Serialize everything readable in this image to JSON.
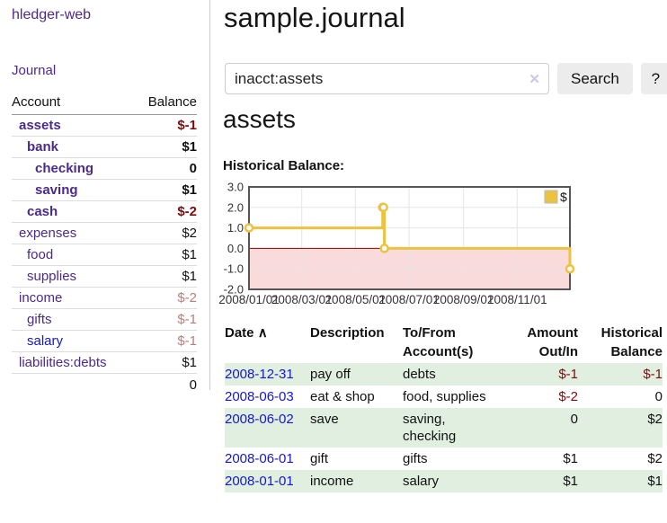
{
  "app": {
    "title": "hledger-web"
  },
  "sidebar": {
    "nav": {
      "journal_label": "Journal"
    },
    "accounts": {
      "headers": {
        "account": "Account",
        "balance": "Balance"
      },
      "rows": [
        {
          "name": "assets",
          "level": 1,
          "bold": true,
          "name_color": "purple",
          "balance": "$-1",
          "balance_color": "negative"
        },
        {
          "name": "bank",
          "level": 2,
          "bold": true,
          "name_color": "purple",
          "balance": "$1",
          "balance_color": "normal"
        },
        {
          "name": "checking",
          "level": 3,
          "bold": true,
          "name_color": "purple",
          "balance": "0",
          "balance_color": "normal"
        },
        {
          "name": "saving",
          "level": 3,
          "bold": true,
          "name_color": "purple",
          "balance": "$1",
          "balance_color": "normal"
        },
        {
          "name": "cash",
          "level": 2,
          "bold": true,
          "name_color": "purple",
          "balance": "$-2",
          "balance_color": "negative"
        },
        {
          "name": "expenses",
          "level": 1,
          "bold": false,
          "name_color": "purple",
          "balance": "$2",
          "balance_color": "normal"
        },
        {
          "name": "food",
          "level": 2,
          "bold": false,
          "name_color": "purple",
          "balance": "$1",
          "balance_color": "normal"
        },
        {
          "name": "supplies",
          "level": 2,
          "bold": false,
          "name_color": "purple",
          "balance": "$1",
          "balance_color": "normal"
        },
        {
          "name": "income",
          "level": 1,
          "bold": false,
          "name_color": "purple",
          "balance": "$-2",
          "balance_color": "negative-muted"
        },
        {
          "name": "gifts",
          "level": 2,
          "bold": false,
          "name_color": "purple",
          "balance": "$-1",
          "balance_color": "negative-muted"
        },
        {
          "name": "salary",
          "level": 2,
          "bold": false,
          "name_color": "blue",
          "balance": "$-1",
          "balance_color": "negative-muted"
        },
        {
          "name": "liabilities:debts",
          "level": 1,
          "bold": false,
          "name_color": "purple",
          "balance": "$1",
          "balance_color": "normal"
        }
      ],
      "total": "0"
    }
  },
  "header": {
    "title": "sample.journal"
  },
  "search": {
    "value": "inacct:assets",
    "clear_icon": "✕",
    "search_label": "Search",
    "help_label": "?"
  },
  "main": {
    "section_title": "assets",
    "chart_label": "Historical Balance:"
  },
  "chart_data": {
    "type": "line",
    "title": "Historical Balance:",
    "series": [
      {
        "name": "$",
        "color": "#edc240",
        "step": true,
        "points": [
          {
            "date": "2008-01-01",
            "value": 1
          },
          {
            "date": "2008-06-01",
            "value": 2
          },
          {
            "date": "2008-06-02",
            "value": 2
          },
          {
            "date": "2008-06-03",
            "value": 0
          },
          {
            "date": "2008-12-31",
            "value": -1
          }
        ]
      }
    ],
    "x_range": [
      "2008-01-01",
      "2008-12-31"
    ],
    "ylim": [
      -2,
      3
    ],
    "y_ticks": [
      3.0,
      2.0,
      1.0,
      0.0,
      -1.0,
      -2.0
    ],
    "x_ticks": [
      "2008/01/01",
      "2008/03/01",
      "2008/05/01",
      "2008/07/01",
      "2008/09/01",
      "2008/11/01"
    ],
    "grid": true,
    "legend": {
      "label": "$",
      "position": "top-right"
    },
    "negative_region_color": "#f9dbdb",
    "zero_line_color": "#8b0000",
    "border_color": "#555555",
    "grid_color": "#e5e5e5"
  },
  "table": {
    "headers": {
      "date": "Date",
      "sort_icon": "∧",
      "description": "Description",
      "accounts": "To/From Account(s)",
      "amount": "Amount Out/In",
      "balance": "Historical Balance"
    },
    "rows": [
      {
        "date": "2008-12-31",
        "description": "pay off",
        "accounts": "debts",
        "amount": "$-1",
        "amount_color": "negative",
        "balance": "$-1",
        "balance_color": "negative",
        "highlight": true
      },
      {
        "date": "2008-06-03",
        "description": "eat & shop",
        "accounts": "food, supplies",
        "amount": "$-2",
        "amount_color": "negative",
        "balance": "0",
        "balance_color": "normal",
        "highlight": false
      },
      {
        "date": "2008-06-02",
        "description": "save",
        "accounts": "saving, checking",
        "amount": "0",
        "amount_color": "normal",
        "balance": "$2",
        "balance_color": "normal",
        "highlight": true
      },
      {
        "date": "2008-06-01",
        "description": "gift",
        "accounts": "gifts",
        "amount": "$1",
        "amount_color": "normal",
        "balance": "$2",
        "balance_color": "normal",
        "highlight": false
      },
      {
        "date": "2008-01-01",
        "description": "income",
        "accounts": "salary",
        "amount": "$1",
        "amount_color": "normal",
        "balance": "$1",
        "balance_color": "normal",
        "highlight": true
      }
    ]
  },
  "colors": {
    "purple": "#4b2a8a",
    "blue": "#1516d1",
    "negative": "#7e0b0b",
    "negative_muted": "#b87e7e",
    "row_highlight": "#e1efe1",
    "button_bg": "#ececec",
    "divider": "#cccccc"
  }
}
